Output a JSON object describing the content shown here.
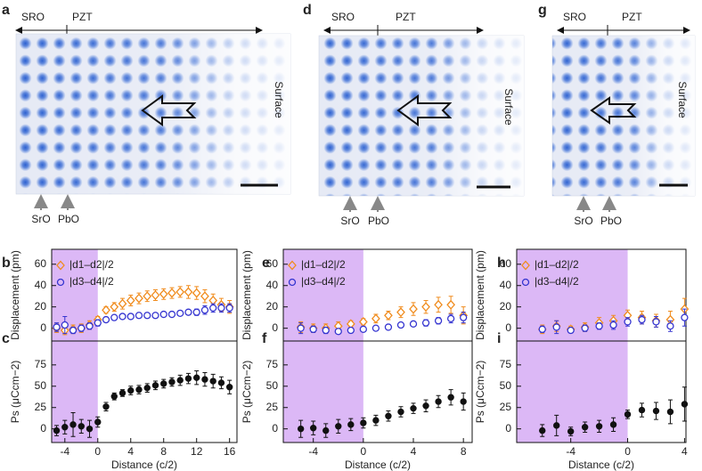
{
  "panels": [
    {
      "letter": "a",
      "top_left": "SRO",
      "top_right": "PZT",
      "side": "Surface",
      "bottom": [
        "SrO",
        "PbO"
      ]
    },
    {
      "letter": "d",
      "top_left": "SRO",
      "top_right": "PZT",
      "side": "Surface",
      "bottom": [
        "SrO",
        "PbO"
      ]
    },
    {
      "letter": "g",
      "top_left": "SRO",
      "top_right": "PZT",
      "side": "Surface",
      "bottom": [
        "SrO",
        "PbO"
      ]
    }
  ],
  "chart_data": [
    {
      "type": "errorbar",
      "label": "b",
      "ylabel": "Displacement (pm)",
      "x": [
        -5,
        -4,
        -3,
        -2,
        -1,
        0,
        1,
        2,
        3,
        4,
        5,
        6,
        7,
        8,
        9,
        10,
        11,
        12,
        13,
        14,
        15,
        16
      ],
      "xlim": [
        -5.6,
        16.9
      ],
      "ylim": [
        -12,
        74
      ],
      "yticks": [
        0,
        20,
        40,
        60
      ],
      "highlight": {
        "x": [
          -5.6,
          0
        ],
        "color": "#dcb8f6"
      },
      "series": [
        {
          "name": "|d1–d2|/2",
          "color": "#f08c1e",
          "marker": "diamond",
          "values": [
            0,
            -2,
            -1,
            0,
            3,
            8,
            17,
            20,
            23,
            26,
            28,
            30,
            31,
            32,
            33,
            34,
            34,
            33,
            30,
            26,
            22,
            20
          ],
          "errors": [
            4,
            4,
            4,
            4,
            4,
            3,
            3,
            4,
            5,
            5,
            5,
            5,
            5,
            5,
            5,
            5,
            6,
            6,
            6,
            6,
            6,
            6
          ]
        },
        {
          "name": "|d3–d4|/2",
          "color": "#3535d0",
          "marker": "circle",
          "values": [
            1,
            3,
            -2,
            0,
            2,
            5,
            8,
            10,
            11,
            11,
            12,
            12,
            12,
            13,
            13,
            14,
            15,
            15,
            17,
            19,
            19,
            19
          ],
          "errors": [
            4,
            8,
            3,
            3,
            3,
            3,
            2,
            2,
            2,
            2,
            2,
            2,
            2,
            2,
            2,
            2,
            2,
            3,
            4,
            4,
            4,
            4
          ]
        }
      ]
    },
    {
      "type": "errorbar",
      "label": "c",
      "ylabel": "Ps (μCcm−2)",
      "xlabel": "Distance (c/2)",
      "x": [
        -5,
        -4,
        -3,
        -2,
        -1,
        0,
        1,
        2,
        3,
        4,
        5,
        6,
        7,
        8,
        9,
        10,
        11,
        12,
        13,
        14,
        15,
        16
      ],
      "xlim": [
        -5.6,
        16.9
      ],
      "xticks": [
        -4,
        0,
        4,
        8,
        12,
        16
      ],
      "ylim": [
        -16,
        103
      ],
      "yticks": [
        0,
        25,
        50,
        75
      ],
      "highlight": {
        "x": [
          -5.6,
          0
        ],
        "color": "#dcb8f6"
      },
      "series": [
        {
          "color": "#111111",
          "marker": "dot",
          "values": [
            -2,
            2,
            5,
            3,
            0,
            8,
            26,
            38,
            42,
            45,
            46,
            48,
            51,
            53,
            55,
            57,
            59,
            60,
            58,
            56,
            54,
            49
          ],
          "errors": [
            6,
            8,
            14,
            8,
            10,
            6,
            5,
            4,
            4,
            5,
            5,
            5,
            5,
            5,
            5,
            6,
            6,
            8,
            8,
            8,
            7,
            8
          ]
        }
      ]
    },
    {
      "type": "errorbar",
      "label": "e",
      "ylabel": "Displacement (pm)",
      "x": [
        -5,
        -4,
        -3,
        -2,
        -1,
        0,
        1,
        2,
        3,
        4,
        5,
        6,
        7,
        8
      ],
      "xlim": [
        -6.4,
        8.7
      ],
      "ylim": [
        -12,
        74
      ],
      "yticks": [
        0,
        20,
        40,
        60
      ],
      "highlight": {
        "x": [
          -6.4,
          0
        ],
        "color": "#dcb8f6"
      },
      "series": [
        {
          "name": "|d1–d2|/2",
          "color": "#f08c1e",
          "marker": "diamond",
          "values": [
            1,
            0,
            0,
            2,
            4,
            6,
            9,
            12,
            15,
            18,
            20,
            22,
            22,
            12
          ],
          "errors": [
            5,
            4,
            4,
            4,
            3,
            3,
            4,
            4,
            5,
            6,
            6,
            7,
            8,
            8
          ]
        },
        {
          "name": "|d3–d4|/2",
          "color": "#3535d0",
          "marker": "circle",
          "values": [
            0,
            -1,
            -2,
            -3,
            -2,
            -1,
            0,
            1,
            3,
            4,
            5,
            7,
            9,
            10
          ],
          "errors": [
            5,
            3,
            3,
            2,
            2,
            2,
            2,
            2,
            2,
            2,
            3,
            3,
            4,
            5
          ]
        }
      ]
    },
    {
      "type": "errorbar",
      "label": "f",
      "ylabel": "Ps (μCcm−2)",
      "xlabel": "Distance (c/2)",
      "x": [
        -5,
        -4,
        -3,
        -2,
        -1,
        0,
        1,
        2,
        3,
        4,
        5,
        6,
        7,
        8
      ],
      "xlim": [
        -6.4,
        8.7
      ],
      "xticks": [
        -4,
        0,
        4,
        8
      ],
      "ylim": [
        -16,
        103
      ],
      "yticks": [
        0,
        25,
        50,
        75
      ],
      "highlight": {
        "x": [
          -6.4,
          0
        ],
        "color": "#dcb8f6"
      },
      "series": [
        {
          "color": "#111111",
          "marker": "dot",
          "values": [
            0,
            1,
            -2,
            3,
            5,
            7,
            10,
            15,
            20,
            24,
            27,
            32,
            37,
            32
          ],
          "errors": [
            10,
            8,
            8,
            8,
            7,
            6,
            6,
            6,
            6,
            6,
            7,
            7,
            9,
            10
          ]
        }
      ]
    },
    {
      "type": "errorbar",
      "label": "h",
      "ylabel": "Displacement (pm)",
      "x": [
        -6,
        -5,
        -4,
        -3,
        -2,
        -1,
        0,
        1,
        2,
        3,
        4
      ],
      "xlim": [
        -7.8,
        4.1
      ],
      "ylim": [
        -12,
        74
      ],
      "yticks": [
        0,
        20,
        40,
        60
      ],
      "highlight": {
        "x": [
          -7.8,
          0
        ],
        "color": "#dcb8f6"
      },
      "series": [
        {
          "name": "|d1–d2|/2",
          "color": "#f08c1e",
          "marker": "diamond",
          "values": [
            -1,
            2,
            -1,
            1,
            5,
            7,
            12,
            10,
            7,
            8,
            18
          ],
          "errors": [
            4,
            5,
            3,
            4,
            5,
            5,
            5,
            6,
            6,
            8,
            10
          ]
        },
        {
          "name": "|d3–d4|/2",
          "color": "#3535d0",
          "marker": "circle",
          "values": [
            -1,
            1,
            -2,
            0,
            2,
            3,
            6,
            8,
            6,
            2,
            10
          ],
          "errors": [
            3,
            6,
            2,
            3,
            3,
            4,
            4,
            4,
            5,
            5,
            8
          ]
        }
      ]
    },
    {
      "type": "errorbar",
      "label": "i",
      "ylabel": "Ps (μCcm−2)",
      "xlabel": "Distance (c/2)",
      "x": [
        -6,
        -5,
        -4,
        -3,
        -2,
        -1,
        0,
        1,
        2,
        3,
        4
      ],
      "xlim": [
        -7.8,
        4.1
      ],
      "xticks": [
        -4,
        0,
        4
      ],
      "ylim": [
        -16,
        103
      ],
      "yticks": [
        0,
        25,
        50,
        75
      ],
      "highlight": {
        "x": [
          -7.8,
          0
        ],
        "color": "#dcb8f6"
      },
      "series": [
        {
          "color": "#111111",
          "marker": "dot",
          "values": [
            -2,
            4,
            -3,
            2,
            3,
            5,
            17,
            22,
            21,
            20,
            29
          ],
          "errors": [
            7,
            12,
            5,
            6,
            7,
            8,
            5,
            8,
            10,
            14,
            20
          ]
        }
      ]
    }
  ]
}
